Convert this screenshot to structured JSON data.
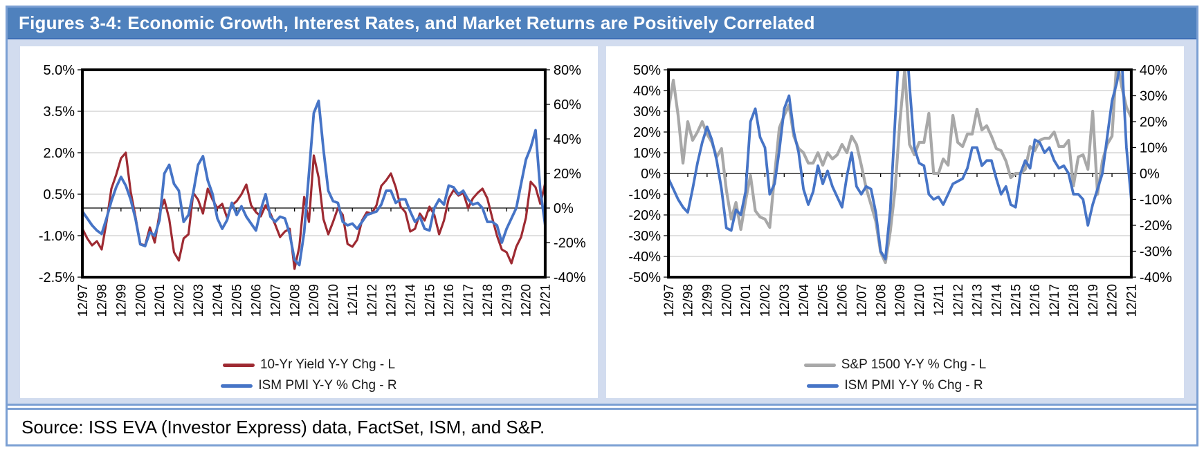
{
  "header": {
    "title": "Figures 3-4: Economic Growth, Interest Rates, and Market Returns are Positively Correlated"
  },
  "source": {
    "text": "Source: ISS EVA (Investor Express) data, FactSet, ISM, and S&P."
  },
  "colors": {
    "header_blue": "#4F81BD",
    "border_blue": "#7B9FD3",
    "main_bg": "#D2DCEF",
    "panel_bg": "#FFFFFF",
    "red": "#9E2A32",
    "blue": "#4674C6",
    "gray": "#A8A8A8",
    "grid": "#D6D6D6",
    "axis_black": "#000000"
  },
  "chart_data": [
    {
      "type": "line",
      "x_labels": [
        "12/97",
        "12/98",
        "12/99",
        "12/00",
        "12/01",
        "12/02",
        "12/03",
        "12/04",
        "12/05",
        "12/06",
        "12/07",
        "12/08",
        "12/09",
        "12/10",
        "12/11",
        "12/12",
        "12/13",
        "12/14",
        "12/15",
        "12/16",
        "12/17",
        "12/18",
        "12/19",
        "12/20",
        "12/21"
      ],
      "x_months_total": 288,
      "interval_months": 3,
      "left_axis": {
        "min": -2.5,
        "max": 5.0,
        "tick_values": [
          5.0,
          3.5,
          2.0,
          0.5,
          -1.0,
          -2.5
        ],
        "ticks": [
          "5.0%",
          "3.5%",
          "2.0%",
          "0.5%",
          "-1.0%",
          "-2.5%"
        ]
      },
      "right_axis": {
        "min": -40,
        "max": 80,
        "tick_values": [
          80,
          60,
          40,
          20,
          0,
          -20,
          -40
        ],
        "ticks": [
          "80%",
          "60%",
          "40%",
          "20%",
          "0%",
          "-20%",
          "-40%"
        ]
      },
      "series": [
        {
          "name": "10-Yr Yield Y-Y Chg - L",
          "axis": "left",
          "color_key": "red",
          "values": [
            -0.75,
            -1.1,
            -1.35,
            -1.2,
            -1.5,
            -0.5,
            0.7,
            1.2,
            1.8,
            2.0,
            0.6,
            -0.3,
            -1.3,
            -1.35,
            -0.7,
            -1.25,
            -0.2,
            0.3,
            -0.4,
            -1.6,
            -1.9,
            -1.1,
            -0.95,
            0.55,
            0.3,
            -0.2,
            0.7,
            0.3,
            0.0,
            0.15,
            -0.35,
            0.1,
            0.25,
            0.5,
            0.85,
            0.1,
            -0.15,
            -0.3,
            0.1,
            -0.2,
            -0.6,
            -1.05,
            -0.85,
            -0.75,
            -2.2,
            -1.4,
            0.4,
            -0.5,
            1.9,
            1.1,
            -0.4,
            -0.95,
            -0.5,
            0.0,
            -0.25,
            -1.3,
            -1.4,
            -1.15,
            -0.45,
            -0.15,
            -0.2,
            0.1,
            0.8,
            1.0,
            1.25,
            0.75,
            0.05,
            -0.15,
            -0.85,
            -0.75,
            -0.2,
            -0.45,
            0.05,
            -0.25,
            -0.95,
            -0.45,
            0.35,
            0.65,
            0.45,
            0.55,
            0.0,
            0.35,
            0.55,
            0.7,
            0.35,
            -0.35,
            -1.0,
            -1.5,
            -1.6,
            -2.0,
            -1.4,
            -1.05,
            -0.35,
            0.95,
            0.75,
            0.15,
            0.9
          ]
        },
        {
          "name": "ISM PMI Y-Y % Chg - R",
          "axis": "right",
          "color_key": "blue",
          "values": [
            -2,
            -6,
            -10,
            -13,
            -15,
            -6,
            4,
            12,
            18,
            13,
            5,
            -6,
            -21,
            -22,
            -14,
            -16,
            -7,
            20,
            25,
            14,
            10,
            -8,
            -4,
            9,
            25,
            30,
            16,
            8,
            -6,
            -12,
            -7,
            3,
            -4,
            1,
            -5,
            -9,
            -13,
            -1,
            8,
            -5,
            -8,
            -5,
            -6,
            -15,
            -30,
            -33,
            -14,
            20,
            55,
            62,
            34,
            10,
            4,
            3,
            -8,
            -10,
            -9,
            -12,
            -8,
            -4,
            -3,
            -2,
            2,
            10,
            10,
            3,
            5,
            5,
            -2,
            -8,
            -5,
            -12,
            -13,
            0,
            5,
            2,
            13,
            12,
            8,
            10,
            5,
            2,
            3,
            0,
            -8,
            -8,
            -10,
            -20,
            -12,
            -6,
            0,
            14,
            28,
            35,
            45,
            10,
            -10
          ]
        }
      ],
      "legend": [
        {
          "label": "10-Yr Yield Y-Y Chg - L",
          "color_key": "red"
        },
        {
          "label": "ISM PMI Y-Y % Chg - R",
          "color_key": "blue"
        }
      ]
    },
    {
      "type": "line",
      "x_labels": [
        "12/97",
        "12/98",
        "12/99",
        "12/00",
        "12/01",
        "12/02",
        "12/03",
        "12/04",
        "12/05",
        "12/06",
        "12/07",
        "12/08",
        "12/09",
        "12/10",
        "12/11",
        "12/12",
        "12/13",
        "12/14",
        "12/15",
        "12/16",
        "12/17",
        "12/18",
        "12/19",
        "12/20",
        "12/21"
      ],
      "x_months_total": 288,
      "interval_months": 3,
      "left_axis": {
        "min": -50,
        "max": 50,
        "tick_values": [
          50,
          40,
          30,
          20,
          10,
          0,
          -10,
          -20,
          -30,
          -40,
          -50
        ],
        "ticks": [
          "50%",
          "40%",
          "30%",
          "20%",
          "10%",
          "0%",
          "-10%",
          "-20%",
          "-30%",
          "-40%",
          "-50%"
        ]
      },
      "right_axis": {
        "min": -40,
        "max": 40,
        "tick_values": [
          40,
          30,
          20,
          10,
          0,
          -10,
          -20,
          -30,
          -40
        ],
        "ticks": [
          "40%",
          "30%",
          "20%",
          "10%",
          "0%",
          "-10%",
          "-20%",
          "-30%",
          "-40%"
        ]
      },
      "series": [
        {
          "name": "S&P 1500 Y-Y % Chg - L",
          "axis": "left",
          "color_key": "gray",
          "values": [
            31,
            45,
            28,
            5,
            25,
            16,
            20,
            25,
            19,
            15,
            8,
            12,
            -8,
            -22,
            -14,
            -27,
            -13,
            -1,
            -18,
            -21,
            -22,
            -26,
            -1,
            22,
            28,
            33,
            18,
            12,
            10,
            5,
            5,
            10,
            4,
            10,
            7,
            9,
            14,
            10,
            18,
            14,
            4,
            -7,
            -15,
            -23,
            -38,
            -43,
            -28,
            -8,
            25,
            50,
            14,
            9,
            15,
            15,
            29,
            0,
            0,
            7,
            4,
            28,
            15,
            13,
            19,
            19,
            31,
            21,
            23,
            18,
            12,
            11,
            6,
            -2,
            0,
            0,
            2,
            13,
            11,
            16,
            17,
            17,
            20,
            13,
            13,
            16,
            -6,
            8,
            9,
            2,
            30,
            -10,
            6,
            14,
            18,
            55,
            42,
            32,
            27
          ]
        },
        {
          "name": "ISM PMI Y-Y % Chg - R",
          "axis": "right",
          "color_key": "blue",
          "values": [
            -2,
            -6,
            -10,
            -13,
            -15,
            -6,
            4,
            12,
            18,
            13,
            5,
            -6,
            -21,
            -22,
            -14,
            -16,
            -7,
            20,
            25,
            14,
            10,
            -8,
            -4,
            9,
            25,
            30,
            16,
            8,
            -6,
            -12,
            -7,
            3,
            -4,
            1,
            -5,
            -9,
            -13,
            -1,
            8,
            -5,
            -8,
            -5,
            -6,
            -15,
            -30,
            -33,
            -14,
            20,
            55,
            62,
            34,
            10,
            4,
            3,
            -8,
            -10,
            -9,
            -12,
            -8,
            -4,
            -3,
            -2,
            2,
            10,
            10,
            3,
            5,
            5,
            -2,
            -8,
            -5,
            -12,
            -13,
            0,
            5,
            2,
            13,
            12,
            8,
            10,
            5,
            2,
            3,
            0,
            -8,
            -8,
            -10,
            -20,
            -12,
            -6,
            0,
            14,
            28,
            35,
            45,
            10,
            -10
          ]
        }
      ],
      "legend": [
        {
          "label": "S&P 1500 Y-Y % Chg - L",
          "color_key": "gray"
        },
        {
          "label": "ISM PMI Y-Y % Chg - R",
          "color_key": "blue"
        }
      ]
    }
  ]
}
